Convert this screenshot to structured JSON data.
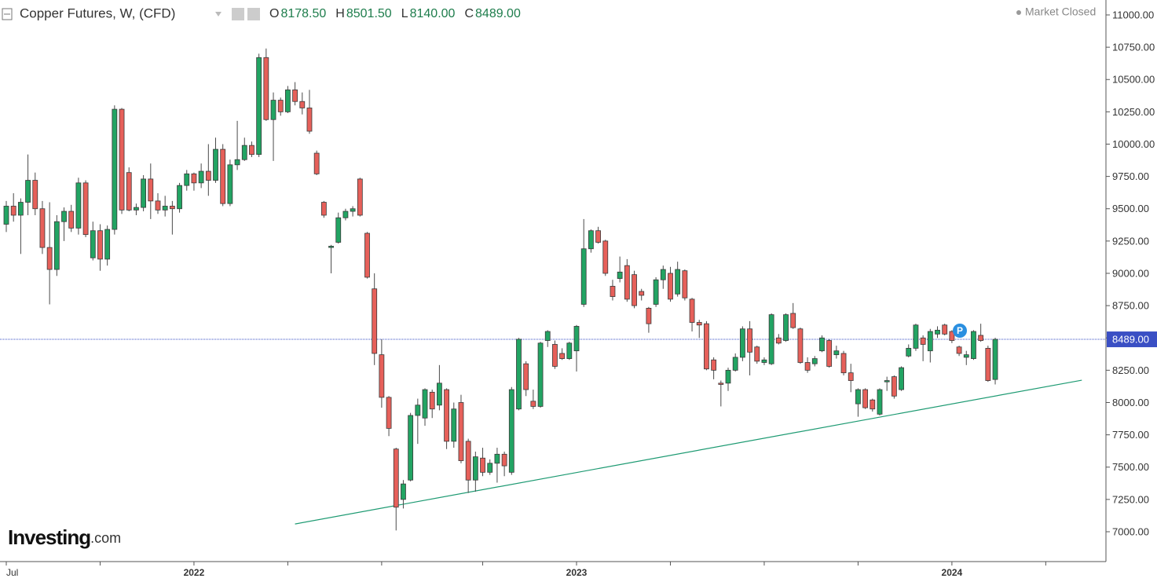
{
  "chart_data": {
    "type": "candlestick",
    "title": "Copper Futures, W, (CFD)",
    "header_ohlc": [
      {
        "label": "O",
        "value": "8178.50"
      },
      {
        "label": "H",
        "value": "8501.50"
      },
      {
        "label": "L",
        "value": "8140.00"
      },
      {
        "label": "C",
        "value": "8489.00"
      }
    ],
    "status": "Market Closed",
    "logo": {
      "main": "Investing",
      "suffix": ".com"
    },
    "badge": "P",
    "up_color": "#22a463",
    "down_color": "#e6605a",
    "trendline_color": "#1d9a72",
    "price_line_color": "#3a4fc4",
    "ylim": [
      6780,
      11080
    ],
    "yticks": [
      {
        "value": 7000,
        "label": "7000.00"
      },
      {
        "value": 7250,
        "label": "7250.00"
      },
      {
        "value": 7500,
        "label": "7500.00"
      },
      {
        "value": 7750,
        "label": "7750.00"
      },
      {
        "value": 8000,
        "label": "8000.00"
      },
      {
        "value": 8250,
        "label": "8250.00"
      },
      {
        "value": 8500,
        "label": "8500.00"
      },
      {
        "value": 8750,
        "label": "8750.00"
      },
      {
        "value": 9000,
        "label": "9000.00"
      },
      {
        "value": 9250,
        "label": "9250.00"
      },
      {
        "value": 9500,
        "label": "9500.00"
      },
      {
        "value": 9750,
        "label": "9750.00"
      },
      {
        "value": 10000,
        "label": "10000.00"
      },
      {
        "value": 10250,
        "label": "10250.00"
      },
      {
        "value": 10500,
        "label": "10500.00"
      },
      {
        "value": 10750,
        "label": "10750.00"
      },
      {
        "value": 11000,
        "label": "11000.00"
      }
    ],
    "xticks": [
      0,
      13,
      26,
      39,
      52,
      66,
      79,
      92,
      105,
      118,
      131,
      144
    ],
    "xtick_labels": [
      "Jul",
      null,
      "2022",
      null,
      null,
      null,
      "2023",
      null,
      null,
      null,
      "2024",
      null
    ],
    "last_price": {
      "value": 8489,
      "label": "8489.00"
    },
    "trendline": {
      "x": [
        40,
        149
      ],
      "y": [
        7060,
        8173
      ]
    },
    "open": [
      9380,
      9520,
      9450,
      9550,
      9720,
      9500,
      9200,
      9030,
      9400,
      9480,
      9350,
      9700,
      9120,
      9330,
      9110,
      9340,
      10270,
      9780,
      9490,
      9510,
      9730,
      9560,
      9490,
      9520,
      9500,
      9680,
      9770,
      9700,
      9790,
      9720,
      9960,
      9540,
      9840,
      9880,
      9990,
      9920,
      10670,
      10190,
      10340,
      10250,
      10420,
      10330,
      10280,
      9930,
      9550,
      9200,
      9240,
      9430,
      9480,
      9730,
      9310,
      8880,
      8370,
      8040,
      7640,
      7250,
      7400,
      7900,
      7880,
      8080,
      7980,
      8100,
      7700,
      8000,
      7700,
      7400,
      7570,
      7460,
      7530,
      7600,
      7460,
      7950,
      8300,
      8010,
      7970,
      8480,
      8450,
      8380,
      8340,
      8400,
      8760,
      9190,
      9330,
      9250,
      8900,
      8960,
      9060,
      8990,
      8860,
      8730,
      8760,
      8950,
      9000,
      8840,
      9020,
      8800,
      8620,
      8610,
      8330,
      8150,
      8150,
      8250,
      8350,
      8570,
      8430,
      8310,
      8300,
      8500,
      8480,
      8690,
      8570,
      8310,
      8300,
      8400,
      8480,
      8370,
      8380,
      8230,
      7990,
      8100,
      8020,
      7910,
      8160,
      8200,
      8100,
      8360,
      8420,
      8500,
      8400,
      8530,
      8600,
      8550,
      8430,
      8350,
      8340,
      8520,
      8420,
      8178.5
    ],
    "high": [
      9560,
      9620,
      9580,
      9920,
      9780,
      9560,
      9550,
      9450,
      9510,
      9530,
      9740,
      9720,
      9400,
      9380,
      9370,
      10300,
      10280,
      9820,
      9540,
      9760,
      9850,
      9620,
      9600,
      9560,
      9700,
      9800,
      9780,
      9850,
      10000,
      10050,
      10000,
      9880,
      10180,
      10050,
      10020,
      10700,
      10740,
      10400,
      10360,
      10450,
      10480,
      10400,
      10420,
      9950,
      9560,
      9220,
      9470,
      9500,
      9520,
      9740,
      9320,
      9000,
      8490,
      8050,
      7650,
      7400,
      7920,
      8030,
      8110,
      8100,
      8290,
      8110,
      8000,
      8060,
      7720,
      7620,
      7650,
      7560,
      7650,
      7620,
      8120,
      8500,
      8320,
      8100,
      8470,
      8560,
      8480,
      8420,
      8470,
      8600,
      9420,
      9340,
      9360,
      9260,
      8950,
      9130,
      9110,
      9020,
      8880,
      8740,
      8970,
      9060,
      9050,
      9090,
      9030,
      8810,
      8640,
      8630,
      8350,
      8170,
      8270,
      8380,
      8590,
      8630,
      8440,
      8350,
      8690,
      8530,
      8690,
      8770,
      8580,
      8350,
      8360,
      8520,
      8490,
      8440,
      8400,
      8300,
      8110,
      8110,
      8030,
      8110,
      8200,
      8210,
      8280,
      8450,
      8610,
      8520,
      8570,
      8590,
      8610,
      8560,
      8440,
      8400,
      8560,
      8610,
      8440,
      8501.5
    ],
    "low": [
      9320,
      9400,
      9150,
      9450,
      9450,
      9150,
      8760,
      8980,
      9250,
      9320,
      9300,
      9280,
      9100,
      9020,
      9060,
      9300,
      9460,
      9480,
      9450,
      9480,
      9420,
      9460,
      9440,
      9300,
      9470,
      9640,
      9640,
      9660,
      9600,
      9700,
      9520,
      9520,
      9800,
      9870,
      9900,
      9900,
      10180,
      9870,
      10220,
      10240,
      10300,
      10230,
      10080,
      9760,
      9430,
      9000,
      9230,
      9410,
      9440,
      9440,
      8960,
      8290,
      7960,
      7740,
      7010,
      7180,
      7390,
      7680,
      7820,
      7880,
      7940,
      7640,
      7650,
      7530,
      7300,
      7310,
      7430,
      7440,
      7380,
      7430,
      7440,
      7940,
      8050,
      7950,
      7960,
      8430,
      8260,
      8330,
      8330,
      8240,
      8740,
      9160,
      9230,
      8980,
      8790,
      8930,
      8780,
      8730,
      8790,
      8540,
      8740,
      8880,
      8780,
      8820,
      8790,
      8550,
      8500,
      8250,
      8180,
      7970,
      8090,
      8240,
      8320,
      8210,
      8300,
      8290,
      8290,
      8450,
      8470,
      8570,
      8300,
      8230,
      8280,
      8390,
      8270,
      8340,
      8210,
      8080,
      7890,
      7950,
      7930,
      7900,
      8090,
      8030,
      8090,
      8350,
      8400,
      8320,
      8310,
      8500,
      8520,
      8460,
      8360,
      8290,
      8330,
      8470,
      8160,
      8140
    ],
    "close": [
      9520,
      9450,
      9550,
      9720,
      9500,
      9200,
      9030,
      9400,
      9480,
      9350,
      9700,
      9300,
      9330,
      9110,
      9340,
      10270,
      9490,
      9490,
      9510,
      9730,
      9560,
      9490,
      9520,
      9500,
      9680,
      9770,
      9700,
      9790,
      9720,
      9960,
      9540,
      9840,
      9880,
      9990,
      9920,
      10670,
      10190,
      10340,
      10250,
      10420,
      10330,
      10280,
      10100,
      9770,
      9450,
      9210,
      9430,
      9480,
      9500,
      9450,
      8970,
      8380,
      8040,
      7800,
      7190,
      7370,
      7900,
      7980,
      8100,
      7950,
      8150,
      7700,
      7950,
      7550,
      7400,
      7580,
      7460,
      7530,
      7600,
      7510,
      8100,
      8490,
      8100,
      7970,
      8460,
      8550,
      8280,
      8340,
      8460,
      8590,
      9190,
      9330,
      9240,
      9000,
      8820,
      9010,
      8800,
      8750,
      8830,
      8610,
      8950,
      9030,
      8800,
      9030,
      8810,
      8620,
      8600,
      8260,
      8250,
      8140,
      8250,
      8350,
      8570,
      8390,
      8320,
      8330,
      8680,
      8460,
      8680,
      8580,
      8310,
      8250,
      8340,
      8500,
      8280,
      8400,
      8230,
      8170,
      8100,
      7960,
      7950,
      8100,
      8170,
      8050,
      8270,
      8420,
      8600,
      8450,
      8550,
      8560,
      8530,
      8480,
      8380,
      8370,
      8550,
      8480,
      8170,
      8489
    ]
  }
}
